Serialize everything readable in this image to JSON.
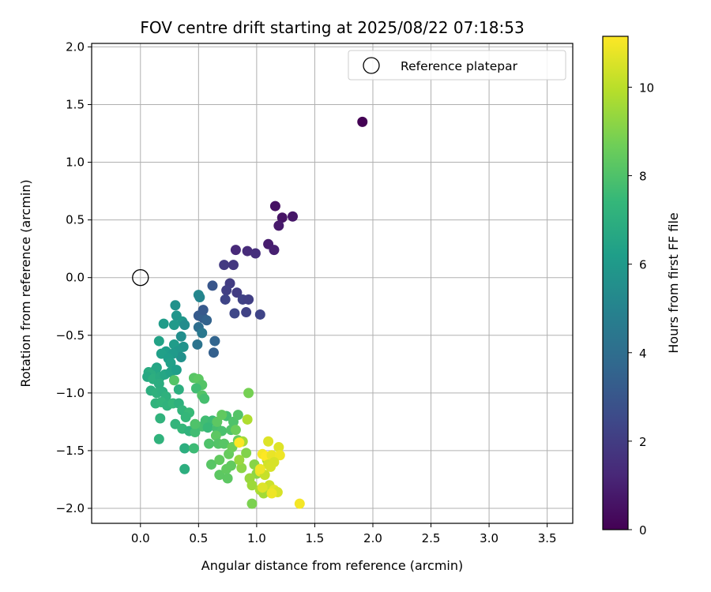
{
  "chart_data": {
    "type": "scatter",
    "title": "FOV centre drift starting at 2025/08/22 07:18:53",
    "xlabel": "Angular distance from reference (arcmin)",
    "ylabel": "Rotation from reference (arcmin)",
    "xlim": [
      -0.42,
      3.72
    ],
    "ylim": [
      -2.13,
      2.03
    ],
    "xticks": [
      "0.0",
      "0.5",
      "1.0",
      "1.5",
      "2.0",
      "2.5",
      "3.0",
      "3.5"
    ],
    "yticks": [
      "2.0",
      "1.5",
      "1.0",
      "0.5",
      "0.0",
      "−0.5",
      "−1.0",
      "−1.5",
      "−2.0"
    ],
    "grid": true,
    "legend": {
      "placement": "top-right",
      "entries": [
        "Reference platepar"
      ]
    },
    "reference_point": {
      "x": 0.0,
      "y": 0.0
    },
    "colorbar": {
      "label": "Hours from first FF file",
      "range": [
        0,
        11.15
      ],
      "ticks": [
        "0",
        "2",
        "4",
        "6",
        "8",
        "10"
      ],
      "colormap": [
        "#440154",
        "#482878",
        "#3e4989",
        "#31688e",
        "#26828e",
        "#1f9e89",
        "#35b779",
        "#6ece58",
        "#b5de2b",
        "#fde725"
      ]
    },
    "points": [
      [
        1.91,
        1.35,
        0.0
      ],
      [
        1.16,
        0.62,
        0.5
      ],
      [
        1.22,
        0.52,
        0.6
      ],
      [
        1.31,
        0.53,
        0.7
      ],
      [
        1.19,
        0.45,
        0.8
      ],
      [
        1.1,
        0.29,
        0.9
      ],
      [
        1.15,
        0.24,
        1.0
      ],
      [
        0.82,
        0.24,
        1.3
      ],
      [
        0.92,
        0.23,
        1.4
      ],
      [
        0.99,
        0.21,
        1.5
      ],
      [
        0.72,
        0.11,
        1.9
      ],
      [
        0.8,
        0.11,
        1.8
      ],
      [
        0.77,
        -0.05,
        2.0
      ],
      [
        0.74,
        -0.11,
        2.1
      ],
      [
        0.83,
        -0.13,
        2.0
      ],
      [
        0.88,
        -0.19,
        2.2
      ],
      [
        0.93,
        -0.19,
        2.1
      ],
      [
        0.73,
        -0.19,
        2.3
      ],
      [
        0.81,
        -0.31,
        2.4
      ],
      [
        0.91,
        -0.3,
        2.2
      ],
      [
        1.03,
        -0.32,
        2.3
      ],
      [
        0.62,
        -0.07,
        3.0
      ],
      [
        0.5,
        -0.33,
        3.2
      ],
      [
        0.54,
        -0.35,
        3.3
      ],
      [
        0.57,
        -0.37,
        3.5
      ],
      [
        0.54,
        -0.28,
        3.1
      ],
      [
        0.64,
        -0.55,
        3.6
      ],
      [
        0.63,
        -0.65,
        3.4
      ],
      [
        0.5,
        -0.43,
        4.0
      ],
      [
        0.49,
        -0.58,
        4.3
      ],
      [
        0.53,
        -0.48,
        4.5
      ],
      [
        0.5,
        -0.15,
        5.2
      ],
      [
        0.51,
        -0.17,
        5.1
      ],
      [
        0.3,
        -0.24,
        5.6
      ],
      [
        0.31,
        -0.33,
        5.8
      ],
      [
        0.36,
        -0.38,
        5.9
      ],
      [
        0.29,
        -0.41,
        6.0
      ],
      [
        0.2,
        -0.4,
        6.1
      ],
      [
        0.38,
        -0.41,
        5.4
      ],
      [
        0.35,
        -0.51,
        5.5
      ],
      [
        0.37,
        -0.6,
        5.7
      ],
      [
        0.29,
        -0.58,
        6.1
      ],
      [
        0.32,
        -0.64,
        5.9
      ],
      [
        0.35,
        -0.69,
        5.6
      ],
      [
        0.22,
        -0.64,
        6.2
      ],
      [
        0.18,
        -0.66,
        6.3
      ],
      [
        0.16,
        -0.55,
        6.4
      ],
      [
        0.28,
        -0.66,
        6.0
      ],
      [
        0.24,
        -0.7,
        6.2
      ],
      [
        0.26,
        -0.74,
        6.3
      ],
      [
        0.14,
        -0.78,
        6.5
      ],
      [
        0.13,
        -0.8,
        6.6
      ],
      [
        0.07,
        -0.82,
        6.8
      ],
      [
        0.09,
        -0.84,
        6.9
      ],
      [
        0.06,
        -0.86,
        6.7
      ],
      [
        0.11,
        -0.88,
        7.0
      ],
      [
        0.17,
        -0.86,
        6.8
      ],
      [
        0.21,
        -0.84,
        6.6
      ],
      [
        0.26,
        -0.82,
        6.4
      ],
      [
        0.31,
        -0.8,
        6.2
      ],
      [
        0.16,
        -0.92,
        6.9
      ],
      [
        0.09,
        -0.98,
        7.0
      ],
      [
        0.14,
        -1.0,
        7.1
      ],
      [
        0.19,
        -0.99,
        7.0
      ],
      [
        0.22,
        -1.03,
        7.1
      ],
      [
        0.13,
        -1.09,
        7.2
      ],
      [
        0.18,
        -1.08,
        7.3
      ],
      [
        0.23,
        -1.11,
        7.2
      ],
      [
        0.28,
        -1.09,
        7.4
      ],
      [
        0.33,
        -1.09,
        7.1
      ],
      [
        0.29,
        -0.89,
        8.1
      ],
      [
        0.33,
        -0.97,
        7.0
      ],
      [
        0.36,
        -1.15,
        7.3
      ],
      [
        0.42,
        -1.17,
        7.5
      ],
      [
        0.39,
        -1.21,
        7.4
      ],
      [
        0.17,
        -1.22,
        7.2
      ],
      [
        0.3,
        -1.27,
        7.3
      ],
      [
        0.36,
        -1.31,
        7.4
      ],
      [
        0.42,
        -1.33,
        7.2
      ],
      [
        0.16,
        -1.4,
        7.2
      ],
      [
        0.38,
        -1.48,
        7.0
      ],
      [
        0.38,
        -1.66,
        7.0
      ],
      [
        0.46,
        -1.48,
        7.6
      ],
      [
        0.53,
        -1.29,
        7.8
      ],
      [
        0.47,
        -1.34,
        7.7
      ],
      [
        0.56,
        -1.24,
        7.7
      ],
      [
        0.62,
        -1.24,
        7.6
      ],
      [
        0.58,
        -1.3,
        7.5
      ],
      [
        0.66,
        -1.31,
        7.8
      ],
      [
        0.7,
        -1.33,
        7.9
      ],
      [
        0.74,
        -1.2,
        7.8
      ],
      [
        0.8,
        -1.25,
        8.0
      ],
      [
        0.84,
        -1.19,
        8.1
      ],
      [
        0.78,
        -1.32,
        8.0
      ],
      [
        0.65,
        -1.37,
        8.3
      ],
      [
        0.67,
        -1.44,
        8.1
      ],
      [
        0.72,
        -1.44,
        8.2
      ],
      [
        0.59,
        -1.44,
        8.0
      ],
      [
        0.61,
        -1.62,
        8.2
      ],
      [
        0.68,
        -1.58,
        8.4
      ],
      [
        0.68,
        -1.71,
        8.3
      ],
      [
        0.74,
        -1.66,
        8.4
      ],
      [
        0.75,
        -1.74,
        8.3
      ],
      [
        0.78,
        -1.63,
        8.4
      ],
      [
        0.76,
        -1.53,
        8.5
      ],
      [
        0.79,
        -1.47,
        8.6
      ],
      [
        0.84,
        -1.41,
        8.5
      ],
      [
        0.46,
        -0.87,
        8.2
      ],
      [
        0.5,
        -0.88,
        8.3
      ],
      [
        0.53,
        -0.93,
        8.1
      ],
      [
        0.48,
        -0.96,
        7.7
      ],
      [
        0.53,
        -1.02,
        8.1
      ],
      [
        0.55,
        -1.05,
        7.8
      ],
      [
        0.47,
        -1.27,
        8.0
      ],
      [
        0.66,
        -1.25,
        8.3
      ],
      [
        0.7,
        -1.19,
        8.4
      ],
      [
        0.82,
        -1.32,
        8.6
      ],
      [
        0.93,
        -1.0,
        8.8
      ],
      [
        0.92,
        -1.23,
        9.8
      ],
      [
        0.88,
        -1.42,
        9.6
      ],
      [
        0.91,
        -1.52,
        9.0
      ],
      [
        0.98,
        -1.62,
        9.1
      ],
      [
        1.0,
        -1.7,
        9.2
      ],
      [
        0.94,
        -1.74,
        9.4
      ],
      [
        0.87,
        -1.65,
        9.2
      ],
      [
        0.85,
        -1.58,
        9.4
      ],
      [
        0.96,
        -1.8,
        9.5
      ],
      [
        0.96,
        -1.96,
        8.9
      ],
      [
        1.03,
        -1.84,
        9.7
      ],
      [
        1.06,
        -1.87,
        9.6
      ],
      [
        1.09,
        -1.58,
        9.8
      ],
      [
        1.1,
        -1.42,
        10.6
      ],
      [
        1.05,
        -1.53,
        11.0
      ],
      [
        1.08,
        -1.55,
        11.2
      ],
      [
        1.13,
        -1.54,
        10.8
      ],
      [
        1.1,
        -1.62,
        10.4
      ],
      [
        1.19,
        -1.47,
        10.6
      ],
      [
        1.2,
        -1.54,
        10.9
      ],
      [
        1.15,
        -1.6,
        10.5
      ],
      [
        1.03,
        -1.68,
        10.8
      ],
      [
        1.07,
        -1.71,
        10.2
      ],
      [
        1.12,
        -1.64,
        10.5
      ],
      [
        1.11,
        -1.8,
        10.3
      ],
      [
        1.15,
        -1.84,
        10.7
      ],
      [
        1.18,
        -1.86,
        10.5
      ],
      [
        1.13,
        -1.87,
        10.9
      ],
      [
        1.05,
        -1.82,
        10.6
      ],
      [
        1.03,
        -1.66,
        10.9
      ],
      [
        1.37,
        -1.96,
        11.0
      ],
      [
        0.85,
        -1.43,
        11.1
      ]
    ]
  }
}
